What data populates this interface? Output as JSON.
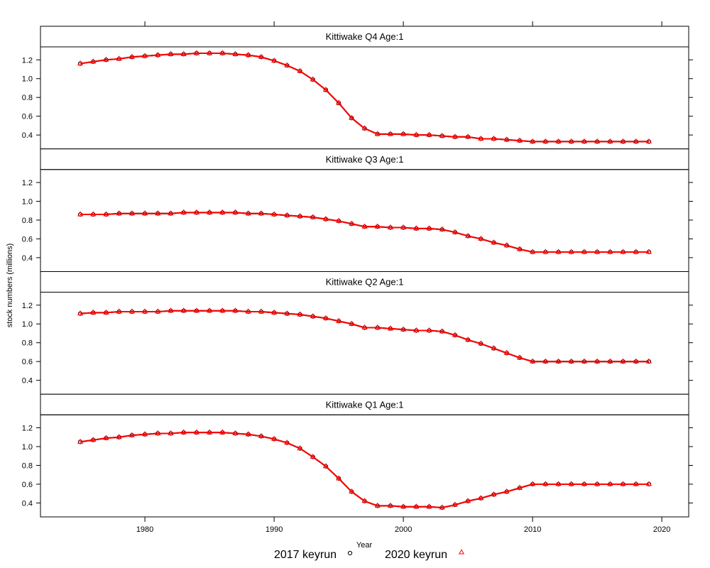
{
  "chart_data": {
    "type": "line",
    "xlabel": "Year",
    "ylabel": "stock numbers (millions)",
    "xlim": [
      1971.92,
      2022.08
    ],
    "ylim": [
      0.252,
      1.338
    ],
    "x_ticks": [
      1980,
      1990,
      2000,
      2010,
      2020
    ],
    "y_ticks": [
      "0.4",
      "0.6",
      "0.8",
      "1.0",
      "1.2"
    ],
    "grid": false,
    "legend_placement": "bottom",
    "x": [
      1975,
      1976,
      1977,
      1978,
      1979,
      1980,
      1981,
      1982,
      1983,
      1984,
      1985,
      1986,
      1987,
      1988,
      1989,
      1990,
      1991,
      1992,
      1993,
      1994,
      1995,
      1996,
      1997,
      1998,
      1999,
      2000,
      2001,
      2002,
      2003,
      2004,
      2005,
      2006,
      2007,
      2008,
      2009,
      2010,
      2011,
      2012,
      2013,
      2014,
      2015,
      2016,
      2017,
      2018,
      2019
    ],
    "panels": [
      {
        "strip": "Kittiwake Q4 Age:1"
      },
      {
        "strip": "Kittiwake Q3 Age:1"
      },
      {
        "strip": "Kittiwake Q2 Age:1"
      },
      {
        "strip": "Kittiwake Q1 Age:1"
      }
    ],
    "series": [
      {
        "name": "2017 keyrun",
        "color": "#000000",
        "marker": "circle",
        "values": [
          [
            1.16,
            1.18,
            1.2,
            1.21,
            1.23,
            1.24,
            1.25,
            1.26,
            1.26,
            1.27,
            1.27,
            1.27,
            1.26,
            1.25,
            1.23,
            1.19,
            1.14,
            1.08,
            0.99,
            0.88,
            0.74,
            0.58,
            0.47,
            0.41,
            0.41,
            0.41,
            0.4,
            0.4,
            0.39,
            0.38,
            0.38,
            0.36,
            0.36,
            0.35,
            0.34,
            0.33,
            0.33,
            0.33,
            0.33,
            0.33,
            0.33,
            0.33,
            0.33,
            0.33,
            0.33
          ],
          [
            0.86,
            0.86,
            0.86,
            0.87,
            0.87,
            0.87,
            0.87,
            0.87,
            0.88,
            0.88,
            0.88,
            0.88,
            0.88,
            0.87,
            0.87,
            0.86,
            0.85,
            0.84,
            0.83,
            0.81,
            0.79,
            0.76,
            0.73,
            0.73,
            0.72,
            0.72,
            0.71,
            0.71,
            0.7,
            0.67,
            0.63,
            0.6,
            0.56,
            0.53,
            0.49,
            0.46,
            0.46,
            0.46,
            0.46,
            0.46,
            0.46,
            0.46,
            0.46,
            0.46,
            0.46
          ],
          [
            1.11,
            1.12,
            1.12,
            1.13,
            1.13,
            1.13,
            1.13,
            1.14,
            1.14,
            1.14,
            1.14,
            1.14,
            1.14,
            1.13,
            1.13,
            1.12,
            1.11,
            1.1,
            1.08,
            1.06,
            1.03,
            1.0,
            0.96,
            0.96,
            0.95,
            0.94,
            0.93,
            0.93,
            0.92,
            0.88,
            0.83,
            0.79,
            0.74,
            0.69,
            0.64,
            0.6,
            0.6,
            0.6,
            0.6,
            0.6,
            0.6,
            0.6,
            0.6,
            0.6,
            0.6
          ],
          [
            1.05,
            1.07,
            1.09,
            1.1,
            1.12,
            1.13,
            1.14,
            1.14,
            1.15,
            1.15,
            1.15,
            1.15,
            1.14,
            1.13,
            1.11,
            1.08,
            1.04,
            0.98,
            0.89,
            0.79,
            0.66,
            0.52,
            0.42,
            0.37,
            0.37,
            0.36,
            0.36,
            0.36,
            0.35,
            0.38,
            0.42,
            0.45,
            0.49,
            0.52,
            0.56,
            0.6,
            0.6,
            0.6,
            0.6,
            0.6,
            0.6,
            0.6,
            0.6,
            0.6,
            0.6
          ]
        ]
      },
      {
        "name": "2020 keyrun",
        "color": "#ff0000",
        "marker": "triangle",
        "values": [
          [
            1.16,
            1.18,
            1.2,
            1.21,
            1.23,
            1.24,
            1.25,
            1.26,
            1.26,
            1.27,
            1.27,
            1.27,
            1.26,
            1.25,
            1.23,
            1.19,
            1.14,
            1.08,
            0.99,
            0.88,
            0.74,
            0.58,
            0.47,
            0.41,
            0.41,
            0.41,
            0.4,
            0.4,
            0.39,
            0.38,
            0.38,
            0.36,
            0.36,
            0.35,
            0.34,
            0.33,
            0.33,
            0.33,
            0.33,
            0.33,
            0.33,
            0.33,
            0.33,
            0.33,
            0.33
          ],
          [
            0.86,
            0.86,
            0.86,
            0.87,
            0.87,
            0.87,
            0.87,
            0.87,
            0.88,
            0.88,
            0.88,
            0.88,
            0.88,
            0.87,
            0.87,
            0.86,
            0.85,
            0.84,
            0.83,
            0.81,
            0.79,
            0.76,
            0.73,
            0.73,
            0.72,
            0.72,
            0.71,
            0.71,
            0.7,
            0.67,
            0.63,
            0.6,
            0.56,
            0.53,
            0.49,
            0.46,
            0.46,
            0.46,
            0.46,
            0.46,
            0.46,
            0.46,
            0.46,
            0.46,
            0.46
          ],
          [
            1.11,
            1.12,
            1.12,
            1.13,
            1.13,
            1.13,
            1.13,
            1.14,
            1.14,
            1.14,
            1.14,
            1.14,
            1.14,
            1.13,
            1.13,
            1.12,
            1.11,
            1.1,
            1.08,
            1.06,
            1.03,
            1.0,
            0.96,
            0.96,
            0.95,
            0.94,
            0.93,
            0.93,
            0.92,
            0.88,
            0.83,
            0.79,
            0.74,
            0.69,
            0.64,
            0.6,
            0.6,
            0.6,
            0.6,
            0.6,
            0.6,
            0.6,
            0.6,
            0.6,
            0.6
          ],
          [
            1.05,
            1.07,
            1.09,
            1.1,
            1.12,
            1.13,
            1.14,
            1.14,
            1.15,
            1.15,
            1.15,
            1.15,
            1.14,
            1.13,
            1.11,
            1.08,
            1.04,
            0.98,
            0.89,
            0.79,
            0.66,
            0.52,
            0.42,
            0.37,
            0.37,
            0.36,
            0.36,
            0.36,
            0.35,
            0.38,
            0.42,
            0.45,
            0.49,
            0.52,
            0.56,
            0.6,
            0.6,
            0.6,
            0.6,
            0.6,
            0.6,
            0.6,
            0.6,
            0.6,
            0.6
          ]
        ]
      }
    ]
  }
}
